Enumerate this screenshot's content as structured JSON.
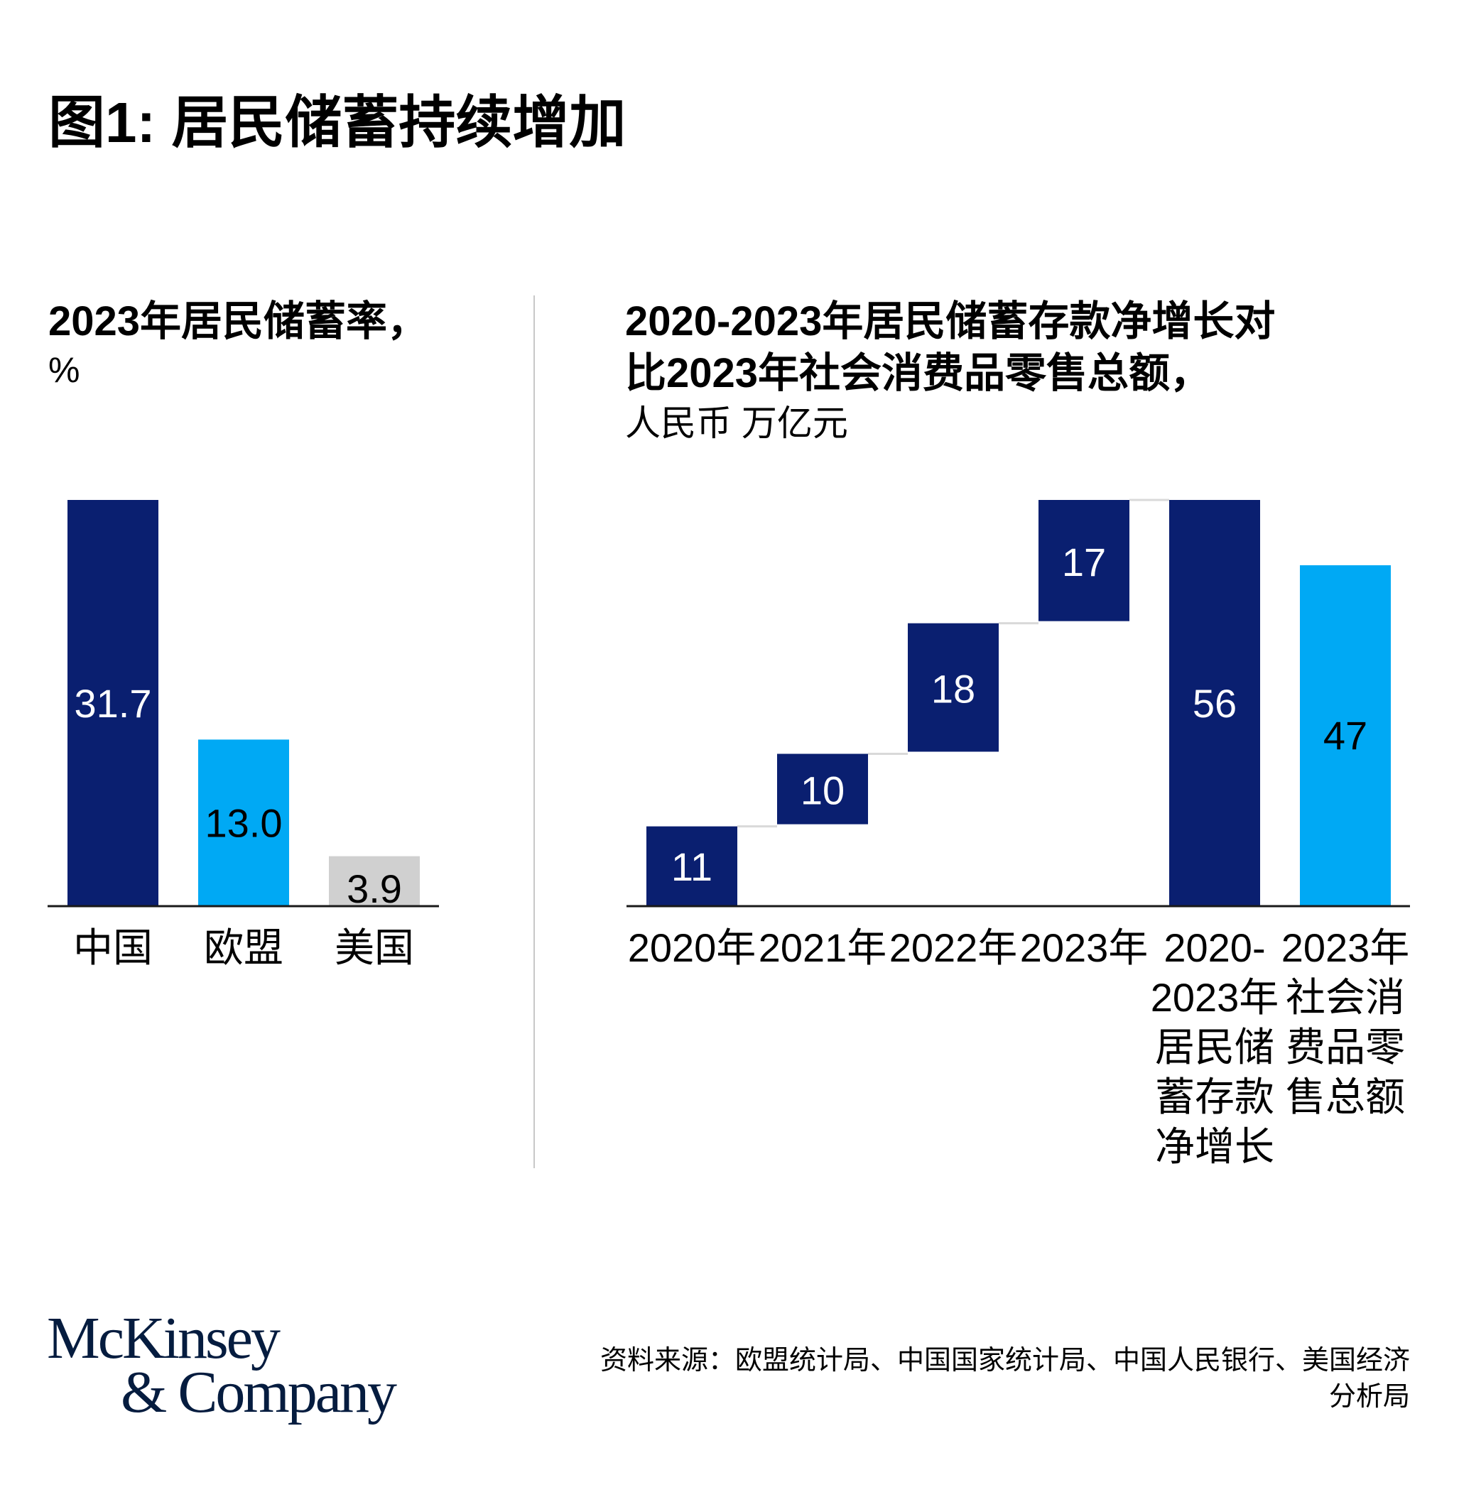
{
  "title": "图1: 居民储蓄持续增加",
  "colors": {
    "navy": "#0a1f70",
    "cyan": "#00a9f4",
    "gray": "#d0d0d0",
    "connector": "#d9d9d9",
    "axis": "#1a1a1a"
  },
  "chart_data": [
    {
      "type": "bar",
      "title": "2023年居民储蓄率，",
      "unit": "%",
      "categories": [
        "中国",
        "欧盟",
        "美国"
      ],
      "values": [
        31.7,
        13.0,
        3.9
      ],
      "value_labels": [
        "31.7",
        "13.0",
        "3.9"
      ],
      "bar_colors": [
        "navy",
        "cyan",
        "gray"
      ],
      "label_colors": [
        "#ffffff",
        "#000000",
        "#000000"
      ],
      "ylim": [
        0,
        31.7
      ],
      "grid": false
    },
    {
      "type": "bar",
      "subtype": "waterfall",
      "title_lines": [
        "2020-2023年居民储蓄存款净增长对",
        "比2023年社会消费品零售总额，"
      ],
      "unit": "人民币 万亿元",
      "categories": [
        [
          "2020年"
        ],
        [
          "2021年"
        ],
        [
          "2022年"
        ],
        [
          "2023年"
        ],
        [
          "2020-",
          "2023年",
          "居民储",
          "蓄存款",
          "净增长"
        ],
        [
          "2023年",
          "社会消",
          "费品零",
          "售总额"
        ]
      ],
      "bars": [
        {
          "base": 0,
          "value": 11,
          "label": "11",
          "color": "navy",
          "label_color": "#ffffff"
        },
        {
          "base": 11,
          "value": 10,
          "label": "10",
          "color": "navy",
          "label_color": "#ffffff"
        },
        {
          "base": 21,
          "value": 18,
          "label": "18",
          "color": "navy",
          "label_color": "#ffffff"
        },
        {
          "base": 39,
          "value": 17,
          "label": "17",
          "color": "navy",
          "label_color": "#ffffff"
        },
        {
          "base": 0,
          "value": 56,
          "label": "56",
          "color": "navy",
          "label_color": "#ffffff"
        },
        {
          "base": 0,
          "value": 47,
          "label": "47",
          "color": "cyan",
          "label_color": "#000000"
        }
      ],
      "ylim": [
        0,
        56
      ],
      "grid": false
    }
  ],
  "footer": {
    "logo_line1": "McKinsey",
    "logo_line2": "& Company",
    "source_lines": [
      "资料来源：欧盟统计局、中国国家统计局、中国人民银行、美国经济",
      "分析局"
    ]
  }
}
